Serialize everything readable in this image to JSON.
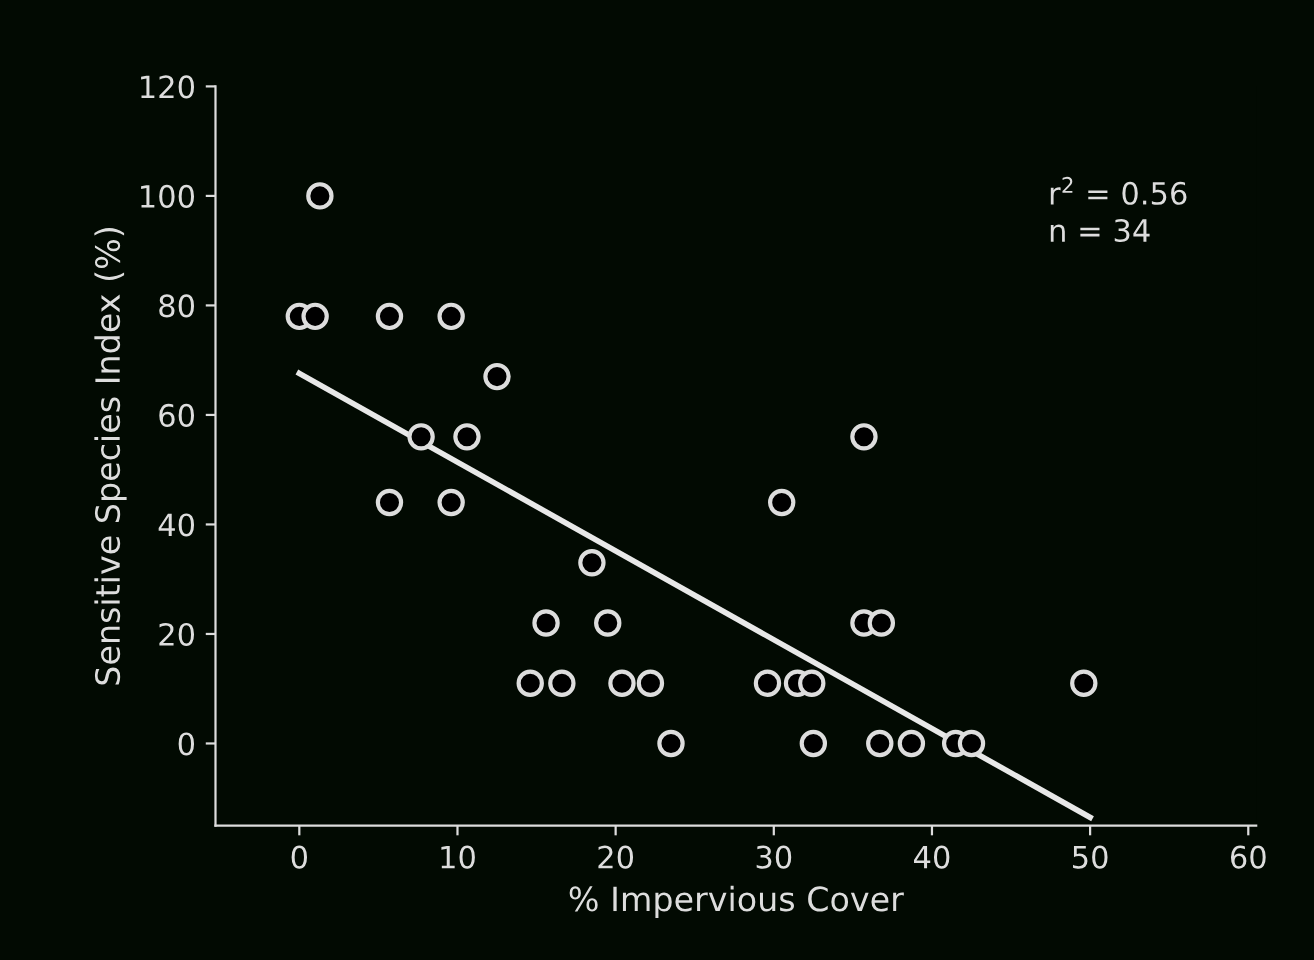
{
  "chart_data": {
    "type": "scatter",
    "xlabel": "% Impervious Cover",
    "ylabel": "Sensitive Species Index (%)",
    "xlim": [
      -5.3,
      60.5
    ],
    "xticks": [
      0,
      10,
      20,
      30,
      40,
      50,
      60
    ],
    "ylim": [
      -15,
      120
    ],
    "yticks": [
      0,
      20,
      40,
      60,
      80,
      100,
      120
    ],
    "grid": false,
    "legend": false,
    "series": [
      {
        "marker": "circle",
        "color": "#000000",
        "x": [
          1.3,
          0,
          1,
          5.7,
          9.6,
          12.5,
          7.7,
          10.6,
          35.7,
          5.7,
          9.6,
          30.5,
          18.5,
          15.6,
          19.5,
          35.7,
          36.8,
          14.6,
          16.6,
          20.4,
          22.2,
          29.6,
          31.5,
          32.4,
          49.6,
          23.5,
          32.5,
          36.7,
          38.7,
          41.5,
          42.5
        ],
        "values": [
          100,
          78,
          78,
          78,
          78,
          67,
          56,
          56,
          56,
          44,
          44,
          44,
          33,
          22,
          22,
          22,
          22,
          11,
          11,
          11,
          11,
          11,
          11,
          11,
          11,
          0,
          0,
          0,
          0,
          0,
          0
        ]
      },
      {
        "type": "line",
        "color": "#e8e8e8",
        "x": [
          0,
          50
        ],
        "values": [
          67.6,
          -13.5
        ]
      }
    ],
    "annotations": [
      "r$^{2}$ = 0.56",
      "n = 34"
    ]
  }
}
